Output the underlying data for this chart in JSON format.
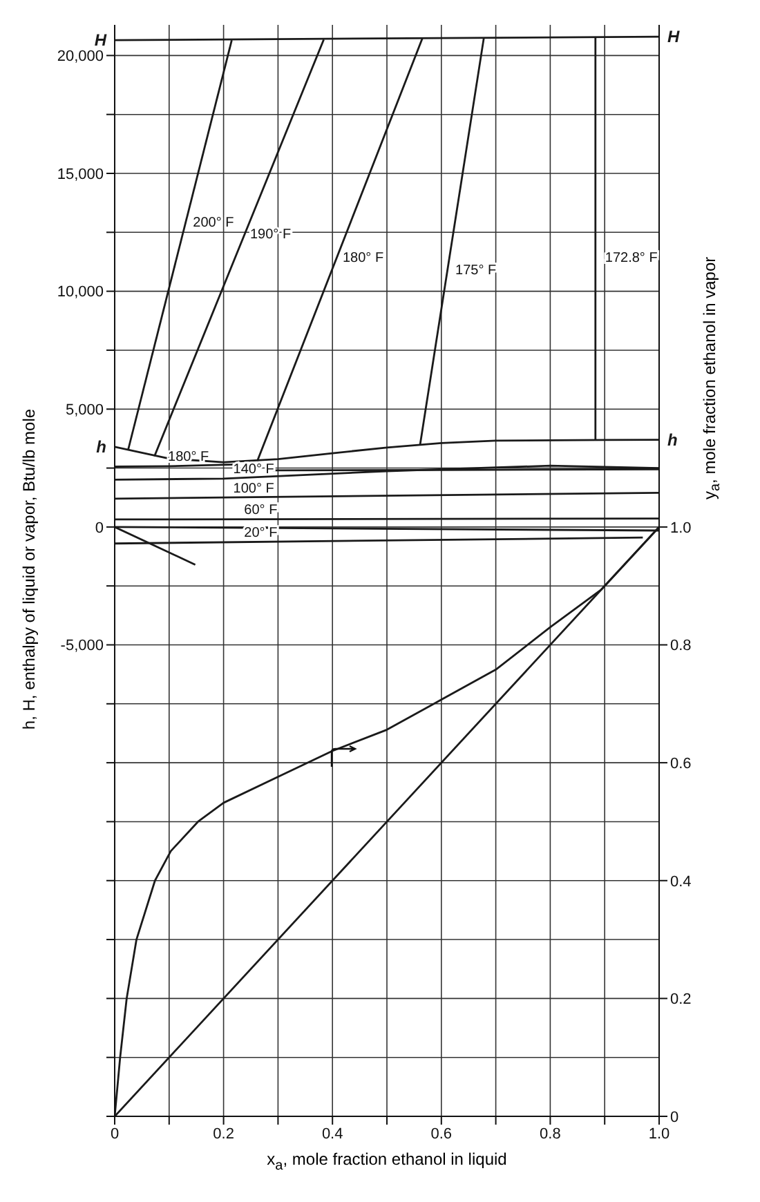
{
  "chart_data": {
    "type": "line",
    "xlabel": "x$_{a}$, mole fraction ethanol in liquid",
    "ylabel": "h, H, enthalpy of liquid or vapor, Btu/lb mole",
    "y2label": "y$_{a}$, mole fraction ethanol in vapor",
    "xlim": [
      0,
      1
    ],
    "xticks": [
      0,
      {
        "value": 0.1,
        "label": null
      },
      0.2,
      {
        "value": 0.3,
        "label": null
      },
      0.4,
      {
        "value": 0.5,
        "label": null
      },
      0.6,
      {
        "value": 0.7,
        "label": null
      },
      0.8,
      {
        "value": 0.9,
        "label": null
      },
      {
        "value": 1,
        "label": "1.0"
      }
    ],
    "ylim": [
      -25000,
      21300
    ],
    "yticks": [
      {
        "value": -25000,
        "label": null
      },
      {
        "value": -22500,
        "label": null
      },
      {
        "value": -20000,
        "label": null
      },
      {
        "value": -17500,
        "label": null
      },
      {
        "value": -15000,
        "label": null
      },
      {
        "value": -12500,
        "label": null
      },
      {
        "value": -10000,
        "label": null
      },
      {
        "value": -7500,
        "label": null
      },
      {
        "value": -5000,
        "label": "-5,000"
      },
      {
        "value": -2500,
        "label": null
      },
      0,
      {
        "value": 2500,
        "label": null
      },
      {
        "value": 5000,
        "label": "5,000"
      },
      {
        "value": 7500,
        "label": null
      },
      {
        "value": 10000,
        "label": "10,000"
      },
      {
        "value": 12500,
        "label": null
      },
      {
        "value": 15000,
        "label": "15,000"
      },
      {
        "value": 17500,
        "label": null
      },
      {
        "value": 20000,
        "label": "20,000"
      }
    ],
    "y2lim": [
      0,
      1.852
    ],
    "y2ticks": [
      0,
      0.2,
      0.4,
      0.6,
      0.8,
      {
        "value": 1,
        "label": "1.0"
      }
    ],
    "grid": true,
    "legend": false,
    "marker": "none",
    "line_style": "solid",
    "series": [
      {
        "name": "H",
        "color": "#1a1a1a",
        "x": [
          0,
          1
        ],
        "values": [
          20650,
          20800
        ]
      },
      {
        "name": "h",
        "color": "#1a1a1a",
        "x": [
          0,
          0.05,
          0.1,
          0.2,
          0.3,
          0.4,
          0.5,
          0.6,
          0.7,
          0.8,
          0.9,
          1
        ],
        "values": [
          3400,
          3150,
          2900,
          2750,
          2880,
          3130,
          3370,
          3560,
          3660,
          3680,
          3690,
          3700
        ]
      },
      {
        "color": "#1a1a1a",
        "x": [
          0.025,
          0.215
        ],
        "values": [
          3300,
          20650
        ]
      },
      {
        "color": "#1a1a1a",
        "x": [
          0.073,
          0.384
        ],
        "values": [
          3000,
          20680
        ]
      },
      {
        "color": "#1a1a1a",
        "x": [
          0.262,
          0.565
        ],
        "values": [
          2800,
          20720
        ]
      },
      {
        "color": "#1a1a1a",
        "x": [
          0.561,
          0.678
        ],
        "values": [
          3500,
          20740
        ]
      },
      {
        "color": "#1a1a1a",
        "x": [
          0.883,
          0.883
        ],
        "values": [
          3700,
          20780
        ]
      },
      {
        "color": "#1a1a1a",
        "x": [
          0,
          0.1,
          0.22
        ],
        "values": [
          2560,
          2580,
          2650
        ]
      },
      {
        "color": "#1a1a1a",
        "x": [
          0,
          0.2,
          0.5,
          0.8,
          1
        ],
        "values": [
          2010,
          2050,
          2370,
          2600,
          2500
        ]
      },
      {
        "color": "#1a1a1a",
        "x": [
          0.29,
          0.6,
          1
        ],
        "values": [
          2400,
          2420,
          2450
        ]
      },
      {
        "color": "#1a1a1a",
        "x": [
          0,
          1
        ],
        "values": [
          1200,
          1450
        ]
      },
      {
        "color": "#1a1a1a",
        "x": [
          0,
          1
        ],
        "values": [
          320,
          360
        ]
      },
      {
        "color": "#1a1a1a",
        "x": [
          0,
          0.97
        ],
        "values": [
          -700,
          -450
        ]
      },
      {
        "color": "#1a1a1a",
        "x": [
          0,
          1
        ],
        "values": [
          0,
          -150
        ]
      },
      {
        "color": "#1a1a1a",
        "x": [
          0,
          0.148
        ],
        "values": [
          0,
          -1600
        ]
      },
      {
        "color": "#1a1a1a",
        "axis": "y2",
        "x": [
          0,
          0.01,
          0.022,
          0.04,
          0.074,
          0.103,
          0.153,
          0.2,
          0.3,
          0.4,
          0.5,
          0.6,
          0.7,
          0.8,
          0.894,
          1
        ],
        "values": [
          0,
          0.1,
          0.2,
          0.3,
          0.4,
          0.45,
          0.5,
          0.532,
          0.576,
          0.62,
          0.656,
          0.707,
          0.758,
          0.83,
          0.894,
          1
        ]
      },
      {
        "color": "#1a1a1a",
        "axis": "y2",
        "x": [
          0,
          1
        ],
        "values": [
          0,
          1
        ]
      }
    ],
    "annotations": [
      {
        "text": "200° F",
        "x": 0.126,
        "y": 12500
      },
      {
        "text": "190° F",
        "x": 0.231,
        "y": 12000
      },
      {
        "text": "180° F",
        "x": 0.401,
        "y": 11000
      },
      {
        "text": "175° F",
        "x": 0.608,
        "y": 10500
      },
      {
        "text": "172.8° F",
        "x": 0.883,
        "y": 11000
      },
      {
        "text": "180° F",
        "x": 0.08,
        "y": 2580
      },
      {
        "text": "140° F",
        "x": 0.2,
        "y": 2050
      },
      {
        "text": "100° F",
        "x": 0.2,
        "y": 1230
      },
      {
        "text": "60° F",
        "x": 0.22,
        "y": 330
      },
      {
        "text": "20° F",
        "x": 0.22,
        "y": -640
      }
    ]
  }
}
